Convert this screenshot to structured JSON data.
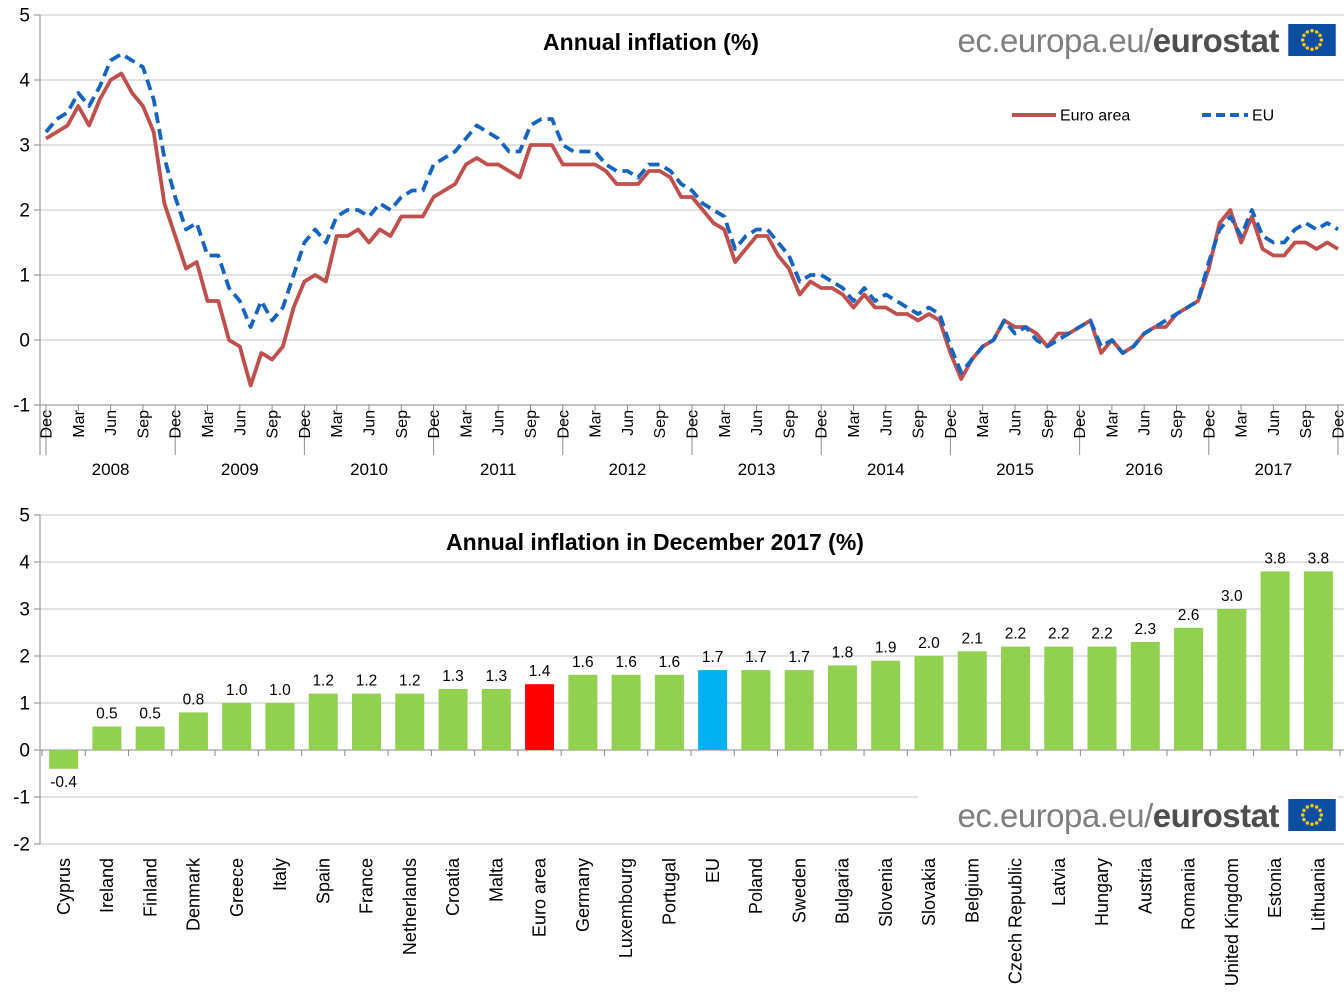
{
  "branding": {
    "url_regular": "ec.europa.eu/",
    "url_bold": "eurostat",
    "flag": {
      "bg": "#0b4ea2",
      "stars": "#ffcc00"
    }
  },
  "theme": {
    "grid": "#c6c6c6",
    "axis": "#8a8a8a",
    "text": "#000000"
  },
  "chart_data": [
    {
      "type": "line",
      "title": "Annual inflation (%)",
      "ylim": [
        -1,
        5
      ],
      "yticks": [
        5,
        4,
        3,
        2,
        1,
        0,
        -1
      ],
      "grid": true,
      "legend_position": "top-right",
      "x_tick_labels": [
        "Dec",
        "Mar",
        "Jun",
        "Sep",
        "Dec",
        "Mar",
        "Jun",
        "Sep",
        "Dec",
        "Mar",
        "Jun",
        "Sep",
        "Dec",
        "Mar",
        "Jun",
        "Sep",
        "Dec",
        "Mar",
        "Jun",
        "Sep",
        "Dec",
        "Mar",
        "Jun",
        "Sep",
        "Dec",
        "Mar",
        "Jun",
        "Sep",
        "Dec",
        "Mar",
        "Jun",
        "Sep",
        "Dec",
        "Mar",
        "Jun",
        "Sep",
        "Dec",
        "Mar",
        "Jun",
        "Sep",
        "Dec"
      ],
      "year_labels": [
        "2008",
        "2009",
        "2010",
        "2011",
        "2012",
        "2013",
        "2014",
        "2015",
        "2016",
        "2017"
      ],
      "x_range_note": "monthly, Dec 2007 - Dec 2017",
      "series": [
        {
          "name": "Euro area",
          "color": "#c0504d",
          "style": "solid",
          "values": [
            3.1,
            3.2,
            3.3,
            3.6,
            3.3,
            3.7,
            4.0,
            4.1,
            3.8,
            3.6,
            3.2,
            2.1,
            1.6,
            1.1,
            1.2,
            0.6,
            0.6,
            0.0,
            -0.1,
            -0.7,
            -0.2,
            -0.3,
            -0.1,
            0.5,
            0.9,
            1.0,
            0.9,
            1.6,
            1.6,
            1.7,
            1.5,
            1.7,
            1.6,
            1.9,
            1.9,
            1.9,
            2.2,
            2.3,
            2.4,
            2.7,
            2.8,
            2.7,
            2.7,
            2.6,
            2.5,
            3.0,
            3.0,
            3.0,
            2.7,
            2.7,
            2.7,
            2.7,
            2.6,
            2.4,
            2.4,
            2.4,
            2.6,
            2.6,
            2.5,
            2.2,
            2.2,
            2.0,
            1.8,
            1.7,
            1.2,
            1.4,
            1.6,
            1.6,
            1.3,
            1.1,
            0.7,
            0.9,
            0.8,
            0.8,
            0.7,
            0.5,
            0.7,
            0.5,
            0.5,
            0.4,
            0.4,
            0.3,
            0.4,
            0.3,
            -0.2,
            -0.6,
            -0.3,
            -0.1,
            0.0,
            0.3,
            0.2,
            0.2,
            0.1,
            -0.1,
            0.1,
            0.1,
            0.2,
            0.3,
            -0.2,
            0.0,
            -0.2,
            -0.1,
            0.1,
            0.2,
            0.2,
            0.4,
            0.5,
            0.6,
            1.1,
            1.8,
            2.0,
            1.5,
            1.9,
            1.4,
            1.3,
            1.3,
            1.5,
            1.5,
            1.4,
            1.5,
            1.4
          ]
        },
        {
          "name": "EU",
          "color": "#1565c0",
          "style": "dashed",
          "values": [
            3.2,
            3.4,
            3.5,
            3.8,
            3.6,
            3.9,
            4.3,
            4.4,
            4.3,
            4.2,
            3.7,
            2.8,
            2.2,
            1.7,
            1.8,
            1.3,
            1.3,
            0.8,
            0.6,
            0.2,
            0.6,
            0.3,
            0.5,
            1.0,
            1.5,
            1.7,
            1.5,
            1.9,
            2.0,
            2.0,
            1.9,
            2.1,
            2.0,
            2.2,
            2.3,
            2.3,
            2.7,
            2.8,
            2.9,
            3.1,
            3.3,
            3.2,
            3.1,
            2.9,
            2.9,
            3.3,
            3.4,
            3.4,
            3.0,
            2.9,
            2.9,
            2.9,
            2.7,
            2.6,
            2.6,
            2.5,
            2.7,
            2.7,
            2.6,
            2.4,
            2.3,
            2.1,
            2.0,
            1.9,
            1.4,
            1.6,
            1.7,
            1.7,
            1.5,
            1.3,
            0.9,
            1.0,
            1.0,
            0.9,
            0.8,
            0.6,
            0.8,
            0.6,
            0.7,
            0.6,
            0.5,
            0.4,
            0.5,
            0.4,
            -0.1,
            -0.5,
            -0.3,
            -0.1,
            0.0,
            0.3,
            0.1,
            0.2,
            0.0,
            -0.1,
            0.0,
            0.1,
            0.2,
            0.3,
            -0.1,
            0.0,
            -0.2,
            -0.1,
            0.1,
            0.2,
            0.3,
            0.4,
            0.5,
            0.6,
            1.2,
            1.7,
            1.9,
            1.6,
            2.0,
            1.6,
            1.5,
            1.5,
            1.7,
            1.8,
            1.7,
            1.8,
            1.7
          ]
        }
      ]
    },
    {
      "type": "bar",
      "title": "Annual inflation in December 2017 (%)",
      "ylim": [
        -2,
        5
      ],
      "yticks": [
        5,
        4,
        3,
        2,
        1,
        0,
        -1,
        -2
      ],
      "grid": true,
      "categories": [
        "Cyprus",
        "Ireland",
        "Finland",
        "Denmark",
        "Greece",
        "Italy",
        "Spain",
        "France",
        "Netherlands",
        "Croatia",
        "Malta",
        "Euro area",
        "Germany",
        "Luxembourg",
        "Portugal",
        "EU",
        "Poland",
        "Sweden",
        "Bulgaria",
        "Slovenia",
        "Slovakia",
        "Belgium",
        "Czech Republic",
        "Latvia",
        "Hungary",
        "Austria",
        "Romania",
        "United Kingdom",
        "Estonia",
        "Lithuania"
      ],
      "values": [
        -0.4,
        0.5,
        0.5,
        0.8,
        1.0,
        1.0,
        1.2,
        1.2,
        1.2,
        1.3,
        1.3,
        1.4,
        1.6,
        1.6,
        1.6,
        1.7,
        1.7,
        1.7,
        1.8,
        1.9,
        2.0,
        2.1,
        2.2,
        2.2,
        2.2,
        2.3,
        2.6,
        3.0,
        3.8,
        3.8
      ],
      "bar_colors": {
        "default": "#92d050",
        "Euro area": "#ff0000",
        "EU": "#00b0f0"
      }
    }
  ]
}
